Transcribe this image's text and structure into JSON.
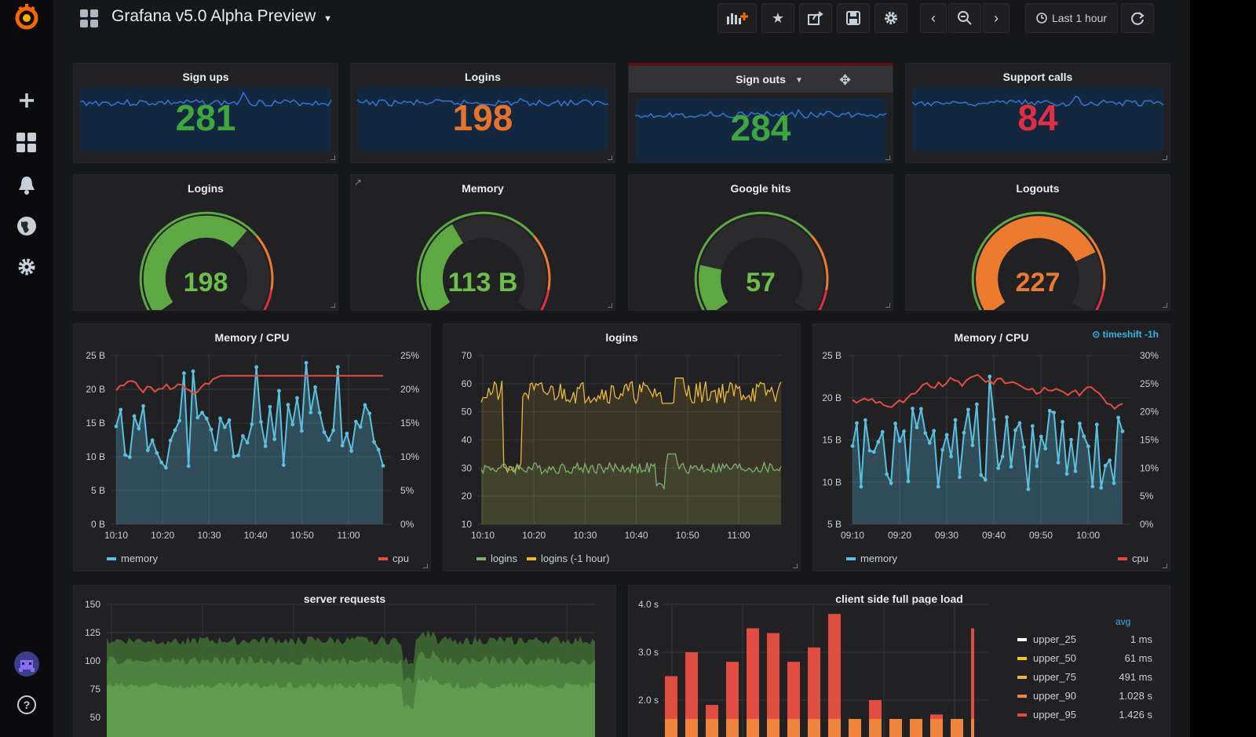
{
  "header": {
    "title": "Grafana v5.0 Alpha Preview",
    "time_range": "Last 1 hour"
  },
  "sidebar": {
    "items": [
      {
        "icon": "grafana-logo-icon"
      },
      {
        "icon": "plus-icon"
      },
      {
        "icon": "dashboards-icon"
      },
      {
        "icon": "bell-icon"
      },
      {
        "icon": "globe-icon"
      },
      {
        "icon": "gear-icon"
      },
      {
        "icon": "user-avatar-icon"
      },
      {
        "icon": "help-icon"
      }
    ]
  },
  "toolbar": {
    "buttons": [
      "add-panel-icon",
      "star-icon",
      "share-icon",
      "save-icon",
      "settings-icon",
      "chevron-left-icon",
      "zoom-out-icon",
      "chevron-right-icon",
      "clock-icon",
      "refresh-icon"
    ]
  },
  "stat_panels": [
    {
      "title": "Sign ups",
      "value": "281",
      "color": "#3fa63f"
    },
    {
      "title": "Logins",
      "value": "198",
      "color": "#e5732e"
    },
    {
      "title": "Sign outs",
      "value": "284",
      "color": "#3fa63f"
    },
    {
      "title": "Support calls",
      "value": "84",
      "color": "#e02f44"
    }
  ],
  "gauge_panels": [
    {
      "title": "Logins",
      "value": "198",
      "fraction": 0.66,
      "color": "#5ea843",
      "text_color": "#6cbd4a"
    },
    {
      "title": "Memory",
      "value": "113 B",
      "fraction": 0.38,
      "color": "#5ea843",
      "text_color": "#6cbd4a"
    },
    {
      "title": "Google hits",
      "value": "57",
      "fraction": 0.19,
      "color": "#5ea843",
      "text_color": "#6cbd4a"
    },
    {
      "title": "Logouts",
      "value": "227",
      "fraction": 0.76,
      "color": "#ed7b2f",
      "text_color": "#ed7b2f"
    }
  ],
  "graphs": {
    "memcpu1": {
      "title": "Memory / CPU",
      "y_left": [
        "25 B",
        "20 B",
        "15 B",
        "10 B",
        "5 B",
        "0 B"
      ],
      "y_right": [
        "25%",
        "20%",
        "15%",
        "10%",
        "5%",
        "0%"
      ],
      "x": [
        "10:10",
        "10:20",
        "10:30",
        "10:40",
        "10:50",
        "11:00"
      ],
      "legend": [
        {
          "name": "memory",
          "color": "#5bc0de"
        },
        {
          "name": "cpu",
          "color": "#e24d42"
        }
      ]
    },
    "logins": {
      "title": "logins",
      "y_left": [
        "70",
        "60",
        "50",
        "40",
        "30",
        "20",
        "10"
      ],
      "x": [
        "10:10",
        "10:20",
        "10:30",
        "10:40",
        "10:50",
        "11:00"
      ],
      "legend": [
        {
          "name": "logins",
          "color": "#7eb26d"
        },
        {
          "name": "logins (-1 hour)",
          "color": "#eab839"
        }
      ]
    },
    "memcpu2": {
      "title": "Memory / CPU",
      "annotation": "timeshift -1h",
      "y_left": [
        "25 B",
        "20 B",
        "15 B",
        "10 B",
        "5 B"
      ],
      "y_right": [
        "30%",
        "25%",
        "20%",
        "15%",
        "10%",
        "5%",
        "0%"
      ],
      "x": [
        "09:10",
        "09:20",
        "09:30",
        "09:40",
        "09:50",
        "10:00"
      ],
      "legend": [
        {
          "name": "memory",
          "color": "#5bc0de"
        },
        {
          "name": "cpu",
          "color": "#e24d42"
        }
      ]
    },
    "server_requests": {
      "title": "server requests",
      "y_left": [
        "150",
        "125",
        "100",
        "75",
        "50"
      ]
    },
    "page_load": {
      "title": "client side full page load",
      "y_left": [
        "4.0 s",
        "3.0 s",
        "2.0 s"
      ],
      "legend_header": "avg",
      "legend": [
        {
          "name": "upper_25",
          "value": "1 ms",
          "color": "#ffffff"
        },
        {
          "name": "upper_50",
          "value": "61 ms",
          "color": "#f2cc0c"
        },
        {
          "name": "upper_75",
          "value": "491 ms",
          "color": "#eab839"
        },
        {
          "name": "upper_90",
          "value": "1.028 s",
          "color": "#ef843c"
        },
        {
          "name": "upper_95",
          "value": "1.426 s",
          "color": "#e24d42"
        }
      ]
    }
  }
}
